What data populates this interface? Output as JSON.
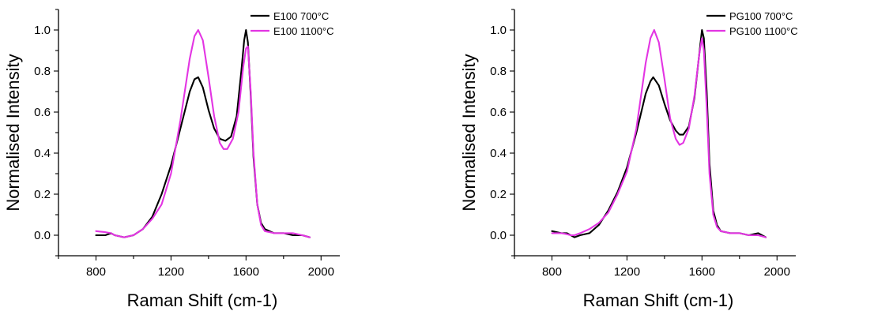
{
  "chart_data": [
    {
      "type": "line",
      "xlabel": "Raman Shift (cm-1)",
      "ylabel": "Normalised Intensity",
      "xlim": [
        600,
        2100
      ],
      "ylim": [
        -0.1,
        1.1
      ],
      "xticks": [
        800,
        1200,
        1600,
        2000
      ],
      "xtick_labels": [
        "800",
        "1200",
        "1600",
        "2000"
      ],
      "yticks": [
        0.0,
        0.2,
        0.4,
        0.6,
        0.8,
        1.0
      ],
      "ytick_labels": [
        "0.0",
        "0.2",
        "0.4",
        "0.6",
        "0.8",
        "1.0"
      ],
      "legend_position": "top-right",
      "series": [
        {
          "name": "E100 700°C",
          "color": "#000000",
          "x": [
            800,
            850,
            880,
            900,
            950,
            1000,
            1050,
            1100,
            1150,
            1200,
            1250,
            1300,
            1325,
            1345,
            1370,
            1400,
            1430,
            1460,
            1490,
            1520,
            1550,
            1575,
            1590,
            1600,
            1610,
            1625,
            1640,
            1660,
            1680,
            1700,
            1750,
            1800,
            1850,
            1900,
            1940
          ],
          "y": [
            0.0,
            0.0,
            0.01,
            0.0,
            -0.01,
            0.0,
            0.03,
            0.09,
            0.2,
            0.34,
            0.52,
            0.7,
            0.76,
            0.77,
            0.72,
            0.61,
            0.52,
            0.47,
            0.46,
            0.48,
            0.58,
            0.8,
            0.95,
            1.0,
            0.94,
            0.68,
            0.38,
            0.15,
            0.06,
            0.03,
            0.01,
            0.01,
            0.0,
            0.0,
            -0.01
          ]
        },
        {
          "name": "E100 1100°C",
          "color": "#e335e3",
          "x": [
            800,
            850,
            880,
            900,
            950,
            1000,
            1050,
            1100,
            1150,
            1200,
            1250,
            1300,
            1325,
            1345,
            1370,
            1400,
            1430,
            1460,
            1480,
            1500,
            1530,
            1560,
            1585,
            1600,
            1610,
            1625,
            1640,
            1660,
            1680,
            1700,
            1750,
            1800,
            1850,
            1900,
            1940
          ],
          "y": [
            0.02,
            0.015,
            0.01,
            0.0,
            -0.01,
            0.0,
            0.03,
            0.08,
            0.15,
            0.3,
            0.56,
            0.86,
            0.97,
            1.0,
            0.95,
            0.77,
            0.58,
            0.45,
            0.42,
            0.42,
            0.47,
            0.6,
            0.82,
            0.91,
            0.92,
            0.7,
            0.4,
            0.15,
            0.05,
            0.02,
            0.01,
            0.01,
            0.01,
            0.0,
            -0.01
          ]
        }
      ]
    },
    {
      "type": "line",
      "xlabel": "Raman Shift (cm-1)",
      "ylabel": "Normalised Intensity",
      "xlim": [
        600,
        2100
      ],
      "ylim": [
        -0.1,
        1.1
      ],
      "xticks": [
        800,
        1200,
        1600,
        2000
      ],
      "xtick_labels": [
        "800",
        "1200",
        "1600",
        "2000"
      ],
      "yticks": [
        0.0,
        0.2,
        0.4,
        0.6,
        0.8,
        1.0
      ],
      "ytick_labels": [
        "0.0",
        "0.2",
        "0.4",
        "0.6",
        "0.8",
        "1.0"
      ],
      "legend_position": "top-right",
      "series": [
        {
          "name": "PG100 700°C",
          "color": "#000000",
          "x": [
            800,
            850,
            880,
            900,
            920,
            950,
            1000,
            1050,
            1100,
            1150,
            1200,
            1250,
            1300,
            1325,
            1340,
            1370,
            1400,
            1430,
            1460,
            1480,
            1500,
            1530,
            1560,
            1585,
            1600,
            1610,
            1625,
            1640,
            1660,
            1680,
            1700,
            1750,
            1800,
            1850,
            1900,
            1940
          ],
          "y": [
            0.02,
            0.01,
            0.01,
            0.0,
            -0.01,
            0.0,
            0.01,
            0.05,
            0.12,
            0.21,
            0.33,
            0.5,
            0.69,
            0.75,
            0.77,
            0.73,
            0.64,
            0.56,
            0.51,
            0.49,
            0.49,
            0.53,
            0.67,
            0.88,
            1.0,
            0.96,
            0.7,
            0.35,
            0.12,
            0.05,
            0.02,
            0.01,
            0.01,
            0.0,
            0.01,
            -0.01
          ]
        },
        {
          "name": "PG100 1100°C",
          "color": "#e335e3",
          "x": [
            800,
            850,
            880,
            900,
            920,
            950,
            1000,
            1050,
            1100,
            1150,
            1200,
            1250,
            1300,
            1325,
            1345,
            1370,
            1400,
            1430,
            1460,
            1480,
            1500,
            1530,
            1560,
            1585,
            1600,
            1610,
            1625,
            1640,
            1660,
            1680,
            1700,
            1750,
            1800,
            1850,
            1900,
            1940
          ],
          "y": [
            0.01,
            0.01,
            0.005,
            0.0,
            0.0,
            0.01,
            0.03,
            0.06,
            0.11,
            0.2,
            0.31,
            0.52,
            0.84,
            0.96,
            1.0,
            0.94,
            0.76,
            0.57,
            0.47,
            0.44,
            0.45,
            0.52,
            0.68,
            0.88,
            0.96,
            0.9,
            0.62,
            0.3,
            0.1,
            0.04,
            0.02,
            0.01,
            0.01,
            0.0,
            0.0,
            -0.01
          ]
        }
      ]
    }
  ]
}
